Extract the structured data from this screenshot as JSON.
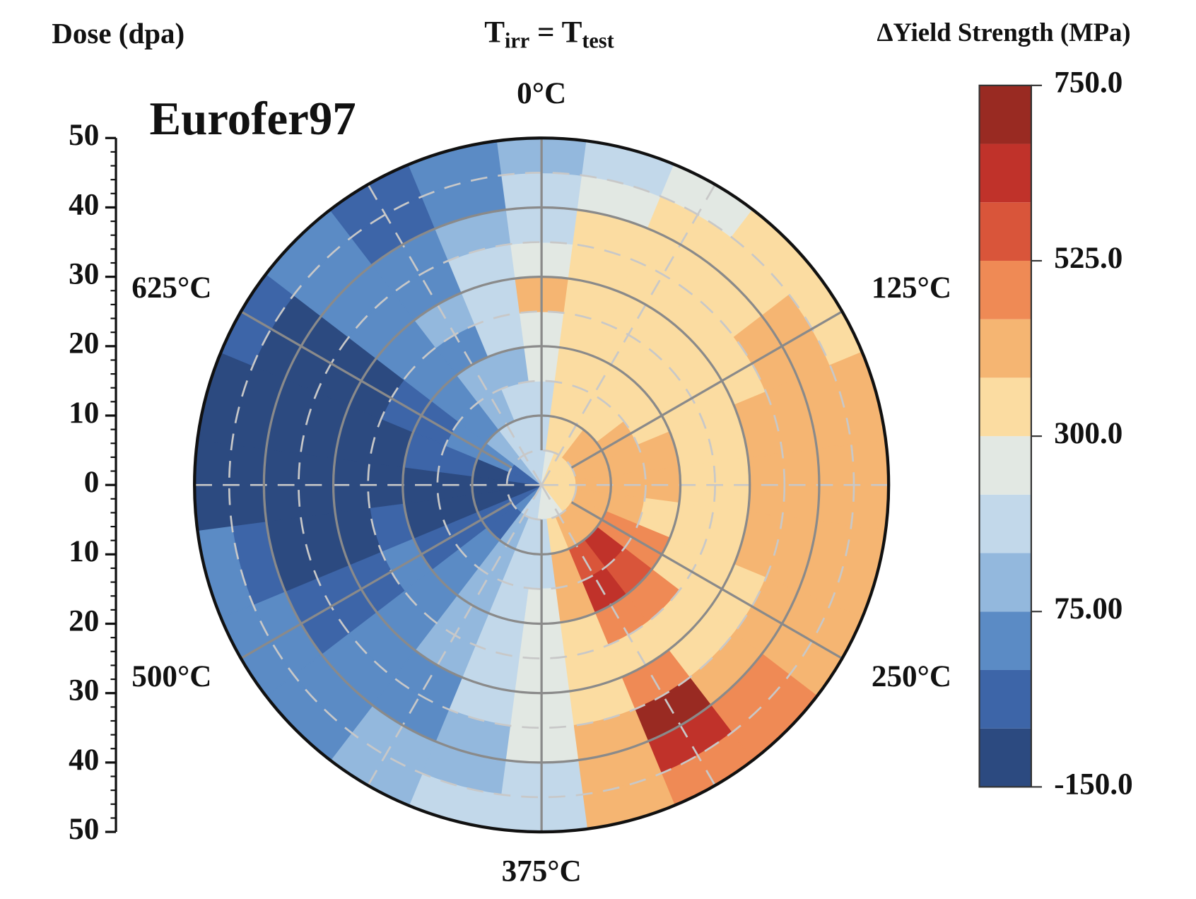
{
  "chart_data": {
    "type": "polar_contour",
    "title": [
      "T",
      "irr",
      " = T",
      "test"
    ],
    "annotation": "Eurofer97",
    "r_label": "Dose (dpa)",
    "colorbar_label": "ΔYield Strength (MPa)",
    "rlim": [
      0,
      50
    ],
    "rticks": [
      0,
      10,
      20,
      30,
      40,
      50
    ],
    "rminor": [
      5,
      15,
      25,
      35,
      45
    ],
    "thetalim": [
      0,
      750
    ],
    "thetaticks": [
      {
        "value": 0,
        "label": "0°C"
      },
      {
        "value": 125,
        "label": "125°C"
      },
      {
        "value": 250,
        "label": "250°C"
      },
      {
        "value": 375,
        "label": "375°C"
      },
      {
        "value": 500,
        "label": "500°C"
      },
      {
        "value": 625,
        "label": "625°C"
      }
    ],
    "thetaminor": [
      62.5,
      187.5,
      312.5,
      437.5,
      562.5,
      687.5
    ],
    "theta": [
      0,
      31.25,
      62.5,
      93.75,
      125,
      156.25,
      187.5,
      218.75,
      250,
      281.25,
      312.5,
      343.75,
      375,
      406.25,
      437.5,
      468.75,
      500,
      531.25,
      562.5,
      593.75,
      625,
      656.25,
      687.5,
      718.75
    ],
    "r": [
      2.5,
      7.5,
      12.5,
      17.5,
      22.5,
      27.5,
      32.5,
      37.5,
      42.5,
      47.5
    ],
    "z": [
      [
        220,
        200,
        200,
        230,
        260,
        380,
        280,
        200,
        170,
        110
      ],
      [
        250,
        330,
        320,
        330,
        330,
        340,
        330,
        330,
        280,
        200
      ],
      [
        300,
        340,
        330,
        330,
        330,
        330,
        340,
        330,
        320,
        270
      ],
      [
        330,
        400,
        360,
        340,
        340,
        340,
        340,
        340,
        340,
        340
      ],
      [
        340,
        400,
        400,
        360,
        340,
        340,
        350,
        400,
        420,
        360
      ],
      [
        340,
        410,
        410,
        400,
        340,
        340,
        400,
        420,
        420,
        400
      ],
      [
        330,
        420,
        420,
        400,
        340,
        340,
        400,
        420,
        420,
        420
      ],
      [
        330,
        400,
        400,
        360,
        340,
        340,
        400,
        420,
        420,
        420
      ],
      [
        320,
        440,
        500,
        460,
        350,
        340,
        350,
        420,
        420,
        420
      ],
      [
        300,
        440,
        620,
        540,
        460,
        360,
        340,
        420,
        460,
        480
      ],
      [
        280,
        380,
        560,
        650,
        470,
        350,
        450,
        680,
        620,
        520
      ],
      [
        260,
        320,
        380,
        380,
        350,
        340,
        370,
        440,
        420,
        400
      ],
      [
        240,
        220,
        220,
        230,
        240,
        240,
        230,
        230,
        220,
        220
      ],
      [
        200,
        180,
        170,
        170,
        170,
        170,
        150,
        110,
        110,
        170
      ],
      [
        170,
        110,
        110,
        110,
        100,
        80,
        50,
        50,
        80,
        120
      ],
      [
        20,
        -20,
        60,
        50,
        40,
        40,
        40,
        40,
        40,
        60
      ],
      [
        -20,
        -60,
        -60,
        -40,
        30,
        -40,
        -60,
        -60,
        20,
        40
      ],
      [
        -80,
        -80,
        -80,
        -80,
        -60,
        -80,
        -80,
        -80,
        -60,
        20
      ],
      [
        -80,
        -80,
        -80,
        -80,
        -80,
        -80,
        -80,
        -80,
        -80,
        -80
      ],
      [
        -60,
        -80,
        -60,
        -60,
        -80,
        -80,
        -80,
        -80,
        -80,
        -80
      ],
      [
        -20,
        20,
        40,
        -40,
        -60,
        -80,
        -80,
        -80,
        -80,
        -60
      ],
      [
        100,
        130,
        60,
        40,
        40,
        40,
        30,
        40,
        40,
        40
      ],
      [
        180,
        160,
        130,
        100,
        50,
        100,
        40,
        40,
        -20,
        -60
      ],
      [
        220,
        190,
        170,
        120,
        160,
        170,
        150,
        120,
        60,
        40
      ]
    ],
    "levels": [
      -150,
      -75,
      0,
      75,
      150,
      225,
      300,
      375,
      450,
      525,
      600,
      675,
      750
    ],
    "colors": [
      "#2c4a80",
      "#3d65a8",
      "#5b8bc5",
      "#93b8dd",
      "#c2d8ea",
      "#e2e8e3",
      "#fbdca1",
      "#f5b572",
      "#ef8a55",
      "#d9553a",
      "#c0322a",
      "#992a22"
    ],
    "clim": [
      -150,
      750
    ],
    "cticks": [
      {
        "value": -150,
        "label": "-150.0"
      },
      {
        "value": 75,
        "label": "75.00"
      },
      {
        "value": 300,
        "label": "300.0"
      },
      {
        "value": 525,
        "label": "525.0"
      },
      {
        "value": 750,
        "label": "750.0"
      }
    ]
  }
}
